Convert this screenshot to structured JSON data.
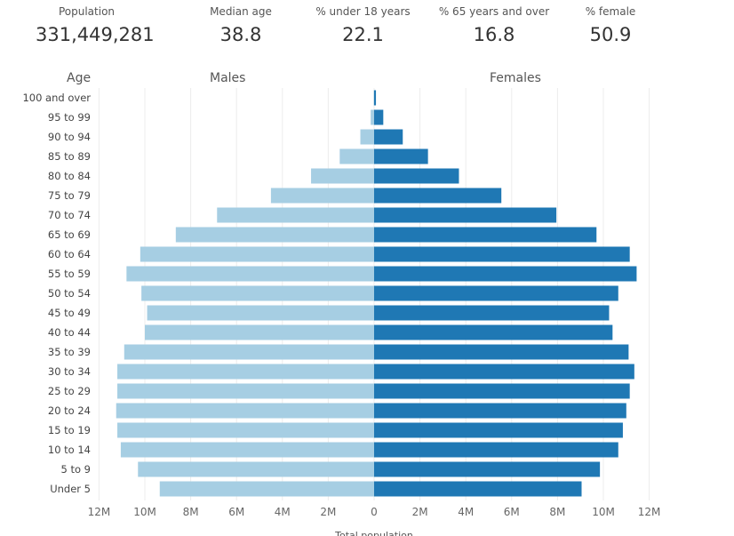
{
  "stats": [
    {
      "label": "Population",
      "value": "331,449,281"
    },
    {
      "label": "Median age",
      "value": "38.8"
    },
    {
      "label": "% under 18 years",
      "value": "22.1"
    },
    {
      "label": "% 65 years and over",
      "value": "16.8"
    },
    {
      "label": "% female",
      "value": "50.9"
    }
  ],
  "headers": {
    "age": "Age",
    "males": "Males",
    "females": "Females"
  },
  "chart_data": {
    "type": "bar",
    "orientation": "horizontal-pyramid",
    "categories": [
      "100 and over",
      "95 to 99",
      "90 to 94",
      "85 to 89",
      "80 to 84",
      "75 to 79",
      "70 to 74",
      "65 to 69",
      "60 to 64",
      "55 to 59",
      "50 to 54",
      "45 to 49",
      "40 to 44",
      "35 to 39",
      "30 to 34",
      "25 to 29",
      "20 to 24",
      "15 to 19",
      "10 to 14",
      "5 to 9",
      "Under 5"
    ],
    "series": [
      {
        "name": "Males",
        "color": "#a6cee3",
        "values": [
          0.02,
          0.15,
          0.6,
          1.5,
          2.75,
          4.5,
          6.85,
          8.65,
          10.2,
          10.8,
          10.15,
          9.9,
          10.0,
          10.9,
          11.2,
          11.2,
          11.25,
          11.2,
          11.05,
          10.3,
          9.35
        ]
      },
      {
        "name": "Females",
        "color": "#1f78b4",
        "values": [
          0.08,
          0.4,
          1.25,
          2.35,
          3.7,
          5.55,
          7.95,
          9.7,
          11.15,
          11.45,
          10.65,
          10.25,
          10.4,
          11.1,
          11.35,
          11.15,
          11.0,
          10.85,
          10.65,
          9.85,
          9.05
        ]
      }
    ],
    "xticks": [
      "12M",
      "10M",
      "8M",
      "6M",
      "4M",
      "2M",
      "0",
      "2M",
      "4M",
      "6M",
      "8M",
      "10M",
      "12M"
    ],
    "xlim": [
      -12,
      12
    ],
    "unit": "millions",
    "xlabel": "Total population",
    "grid": true
  }
}
